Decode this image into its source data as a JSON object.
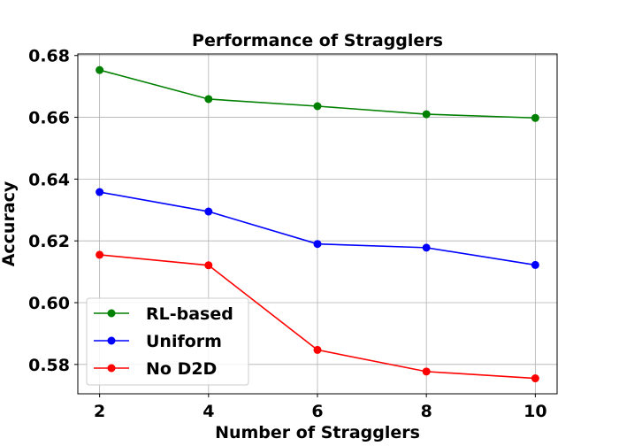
{
  "chart_data": {
    "type": "line",
    "title": "Performance of Stragglers",
    "xlabel": "Number of Stragglers",
    "ylabel": "Accuracy",
    "x": [
      2,
      4,
      6,
      8,
      10
    ],
    "xlim": [
      1.6,
      10.4
    ],
    "ylim": [
      0.5705,
      0.6805
    ],
    "xticks": [
      2,
      4,
      6,
      8,
      10
    ],
    "yticks": [
      0.58,
      0.6,
      0.62,
      0.64,
      0.66,
      0.68
    ],
    "ytick_labels": [
      "0.58",
      "0.60",
      "0.62",
      "0.64",
      "0.66",
      "0.68"
    ],
    "grid": true,
    "legend_position": "lower-left",
    "series": [
      {
        "name": "RL-based",
        "color": "#008000",
        "values": [
          0.6753,
          0.6659,
          0.6636,
          0.661,
          0.6598
        ]
      },
      {
        "name": "Uniform",
        "color": "#0000ff",
        "values": [
          0.6358,
          0.6295,
          0.619,
          0.6178,
          0.6122
        ]
      },
      {
        "name": "No D2D",
        "color": "#ff0000",
        "values": [
          0.6155,
          0.6121,
          0.5847,
          0.5777,
          0.5755
        ]
      }
    ]
  }
}
